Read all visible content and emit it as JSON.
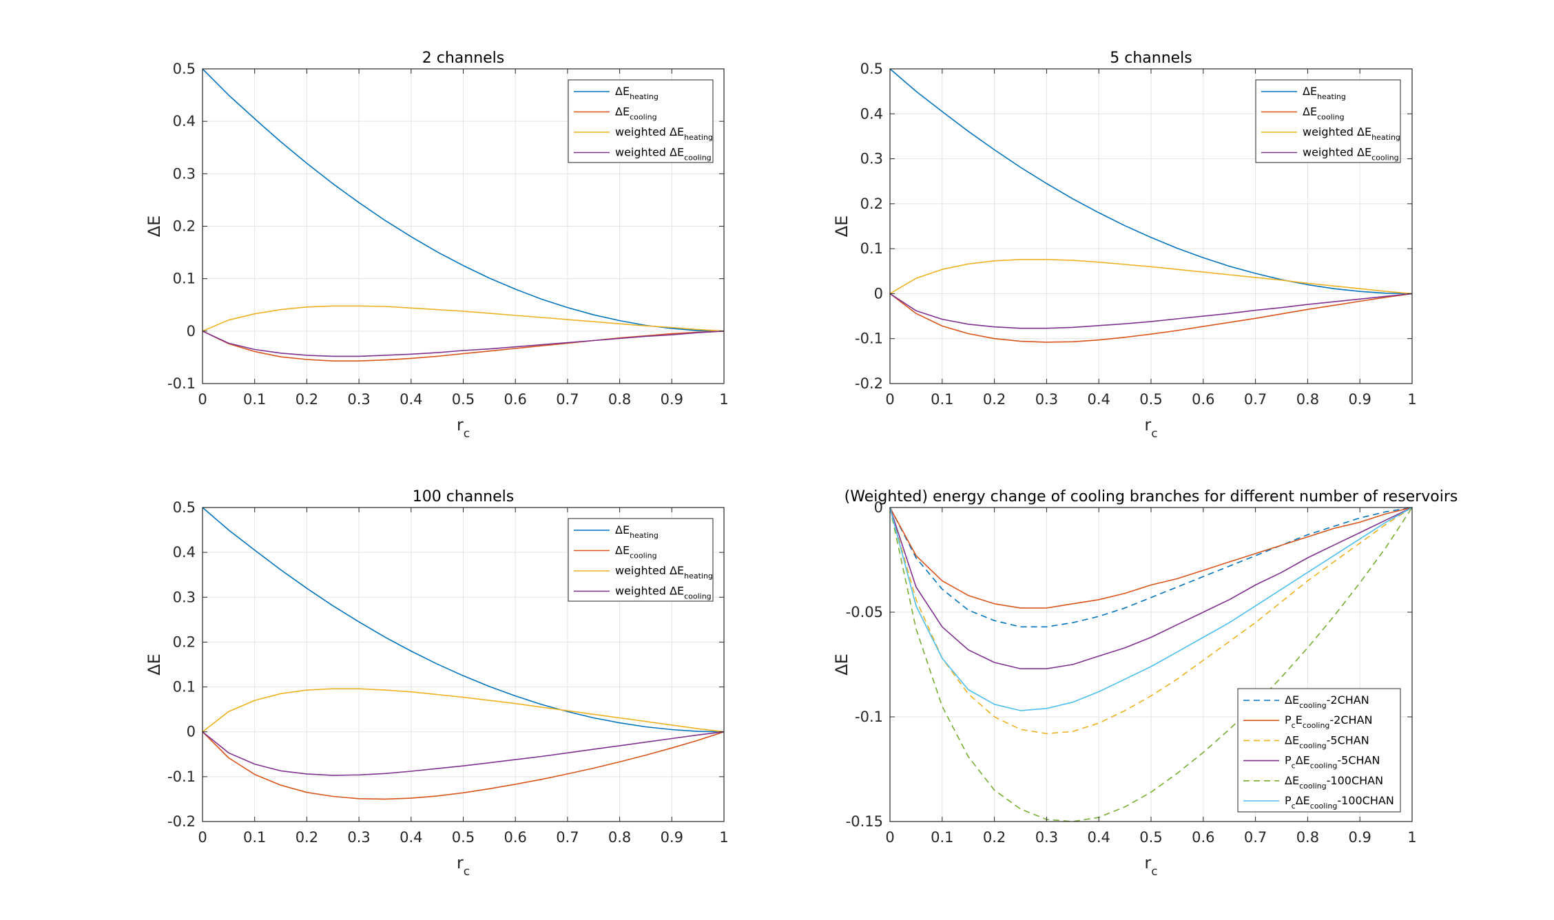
{
  "chart_data": [
    {
      "type": "line",
      "title": "2 channels",
      "xlabel": "r",
      "xlabel_sub": "c",
      "ylabel": "ΔE",
      "xlim": [
        0,
        1
      ],
      "ylim": [
        -0.1,
        0.5
      ],
      "xticks": [
        0,
        0.1,
        0.2,
        0.3,
        0.4,
        0.5,
        0.6,
        0.7,
        0.8,
        0.9,
        1
      ],
      "xtick_labels": [
        "0",
        "0.1",
        "0.2",
        "0.3",
        "0.4",
        "0.5",
        "0.6",
        "0.7",
        "0.8",
        "0.9",
        "1"
      ],
      "yticks": [
        -0.1,
        0,
        0.1,
        0.2,
        0.3,
        0.4,
        0.5
      ],
      "ytick_labels": [
        "-0.1",
        "0",
        "0.1",
        "0.2",
        "0.3",
        "0.4",
        "0.5"
      ],
      "grid": true,
      "legend_position": "top-right",
      "x": [
        0,
        0.05,
        0.1,
        0.15,
        0.2,
        0.25,
        0.3,
        0.35,
        0.4,
        0.45,
        0.5,
        0.55,
        0.6,
        0.65,
        0.7,
        0.75,
        0.8,
        0.85,
        0.9,
        0.95,
        1
      ],
      "series": [
        {
          "label_main": "ΔE",
          "label_sub": "heating",
          "label_suffix": "",
          "color": "#0072BD",
          "dash": "solid",
          "values": [
            0.5,
            0.45,
            0.405,
            0.361,
            0.32,
            0.281,
            0.245,
            0.211,
            0.18,
            0.151,
            0.125,
            0.101,
            0.08,
            0.061,
            0.045,
            0.031,
            0.02,
            0.011,
            0.005,
            0.001,
            0
          ]
        },
        {
          "label_main": "ΔE",
          "label_sub": "cooling",
          "label_suffix": "",
          "color": "#D95319",
          "dash": "solid",
          "values": [
            0,
            -0.024,
            -0.039,
            -0.049,
            -0.054,
            -0.057,
            -0.057,
            -0.055,
            -0.052,
            -0.048,
            -0.043,
            -0.038,
            -0.033,
            -0.028,
            -0.023,
            -0.018,
            -0.013,
            -0.009,
            -0.005,
            -0.002,
            0
          ]
        },
        {
          "label_main": "weighted ΔE",
          "label_sub": "heating",
          "label_suffix": "",
          "color": "#EDB120",
          "dash": "solid",
          "values": [
            0,
            0.021,
            0.033,
            0.041,
            0.046,
            0.048,
            0.048,
            0.047,
            0.044,
            0.041,
            0.038,
            0.034,
            0.03,
            0.026,
            0.022,
            0.018,
            0.014,
            0.01,
            0.007,
            0.003,
            0
          ]
        },
        {
          "label_main": "weighted ΔE",
          "label_sub": "cooling",
          "label_suffix": "",
          "color": "#7E2F8E",
          "dash": "solid",
          "values": [
            0,
            -0.023,
            -0.035,
            -0.042,
            -0.046,
            -0.048,
            -0.048,
            -0.046,
            -0.044,
            -0.041,
            -0.037,
            -0.034,
            -0.03,
            -0.026,
            -0.022,
            -0.018,
            -0.014,
            -0.01,
            -0.007,
            -0.003,
            0
          ]
        }
      ]
    },
    {
      "type": "line",
      "title": "5 channels",
      "xlabel": "r",
      "xlabel_sub": "c",
      "ylabel": "ΔE",
      "xlim": [
        0,
        1
      ],
      "ylim": [
        -0.2,
        0.5
      ],
      "xticks": [
        0,
        0.1,
        0.2,
        0.3,
        0.4,
        0.5,
        0.6,
        0.7,
        0.8,
        0.9,
        1
      ],
      "xtick_labels": [
        "0",
        "0.1",
        "0.2",
        "0.3",
        "0.4",
        "0.5",
        "0.6",
        "0.7",
        "0.8",
        "0.9",
        "1"
      ],
      "yticks": [
        -0.2,
        -0.1,
        0,
        0.1,
        0.2,
        0.3,
        0.4,
        0.5
      ],
      "ytick_labels": [
        "-0.2",
        "-0.1",
        "0",
        "0.1",
        "0.2",
        "0.3",
        "0.4",
        "0.5"
      ],
      "grid": true,
      "legend_position": "top-right",
      "x": [
        0,
        0.05,
        0.1,
        0.15,
        0.2,
        0.25,
        0.3,
        0.35,
        0.4,
        0.45,
        0.5,
        0.55,
        0.6,
        0.65,
        0.7,
        0.75,
        0.8,
        0.85,
        0.9,
        0.95,
        1
      ],
      "series": [
        {
          "label_main": "ΔE",
          "label_sub": "heating",
          "label_suffix": "",
          "color": "#0072BD",
          "dash": "solid",
          "values": [
            0.5,
            0.45,
            0.405,
            0.361,
            0.32,
            0.281,
            0.245,
            0.211,
            0.18,
            0.151,
            0.125,
            0.101,
            0.08,
            0.061,
            0.045,
            0.031,
            0.02,
            0.011,
            0.005,
            0.001,
            0
          ]
        },
        {
          "label_main": "ΔE",
          "label_sub": "cooling",
          "label_suffix": "",
          "color": "#D95319",
          "dash": "solid",
          "values": [
            0,
            -0.044,
            -0.072,
            -0.089,
            -0.1,
            -0.106,
            -0.108,
            -0.107,
            -0.103,
            -0.097,
            -0.09,
            -0.082,
            -0.073,
            -0.064,
            -0.055,
            -0.045,
            -0.035,
            -0.026,
            -0.017,
            -0.008,
            0
          ]
        },
        {
          "label_main": "weighted ΔE",
          "label_sub": "heating",
          "label_suffix": "",
          "color": "#EDB120",
          "dash": "solid",
          "values": [
            0,
            0.034,
            0.054,
            0.066,
            0.073,
            0.076,
            0.076,
            0.074,
            0.07,
            0.065,
            0.06,
            0.054,
            0.048,
            0.042,
            0.036,
            0.03,
            0.023,
            0.017,
            0.011,
            0.005,
            0
          ]
        },
        {
          "label_main": "weighted ΔE",
          "label_sub": "cooling",
          "label_suffix": "",
          "color": "#7E2F8E",
          "dash": "solid",
          "values": [
            0,
            -0.038,
            -0.057,
            -0.068,
            -0.074,
            -0.077,
            -0.077,
            -0.075,
            -0.071,
            -0.067,
            -0.062,
            -0.056,
            -0.05,
            -0.044,
            -0.037,
            -0.031,
            -0.024,
            -0.018,
            -0.012,
            -0.006,
            0
          ]
        }
      ]
    },
    {
      "type": "line",
      "title": "100 channels",
      "xlabel": "r",
      "xlabel_sub": "c",
      "ylabel": "ΔE",
      "xlim": [
        0,
        1
      ],
      "ylim": [
        -0.2,
        0.5
      ],
      "xticks": [
        0,
        0.1,
        0.2,
        0.3,
        0.4,
        0.5,
        0.6,
        0.7,
        0.8,
        0.9,
        1
      ],
      "xtick_labels": [
        "0",
        "0.1",
        "0.2",
        "0.3",
        "0.4",
        "0.5",
        "0.6",
        "0.7",
        "0.8",
        "0.9",
        "1"
      ],
      "yticks": [
        -0.2,
        -0.1,
        0,
        0.1,
        0.2,
        0.3,
        0.4,
        0.5
      ],
      "ytick_labels": [
        "-0.2",
        "-0.1",
        "0",
        "0.1",
        "0.2",
        "0.3",
        "0.4",
        "0.5"
      ],
      "grid": true,
      "legend_position": "top-right",
      "x": [
        0,
        0.05,
        0.1,
        0.15,
        0.2,
        0.25,
        0.3,
        0.35,
        0.4,
        0.45,
        0.5,
        0.55,
        0.6,
        0.65,
        0.7,
        0.75,
        0.8,
        0.85,
        0.9,
        0.95,
        1
      ],
      "series": [
        {
          "label_main": "ΔE",
          "label_sub": "heating",
          "label_suffix": "",
          "color": "#0072BD",
          "dash": "solid",
          "values": [
            0.5,
            0.45,
            0.405,
            0.361,
            0.32,
            0.281,
            0.245,
            0.211,
            0.18,
            0.151,
            0.125,
            0.101,
            0.08,
            0.061,
            0.045,
            0.031,
            0.02,
            0.011,
            0.005,
            0.001,
            0
          ]
        },
        {
          "label_main": "ΔE",
          "label_sub": "cooling",
          "label_suffix": "",
          "color": "#D95319",
          "dash": "solid",
          "values": [
            0,
            -0.058,
            -0.095,
            -0.119,
            -0.135,
            -0.144,
            -0.149,
            -0.15,
            -0.148,
            -0.143,
            -0.136,
            -0.127,
            -0.117,
            -0.106,
            -0.094,
            -0.081,
            -0.067,
            -0.052,
            -0.036,
            -0.019,
            0
          ]
        },
        {
          "label_main": "weighted ΔE",
          "label_sub": "heating",
          "label_suffix": "",
          "color": "#EDB120",
          "dash": "solid",
          "values": [
            0,
            0.045,
            0.07,
            0.085,
            0.093,
            0.096,
            0.096,
            0.093,
            0.089,
            0.083,
            0.077,
            0.07,
            0.063,
            0.055,
            0.047,
            0.039,
            0.031,
            0.023,
            0.015,
            0.007,
            0
          ]
        },
        {
          "label_main": "weighted ΔE",
          "label_sub": "cooling",
          "label_suffix": "",
          "color": "#7E2F8E",
          "dash": "solid",
          "values": [
            0,
            -0.047,
            -0.072,
            -0.087,
            -0.094,
            -0.097,
            -0.096,
            -0.093,
            -0.088,
            -0.082,
            -0.076,
            -0.069,
            -0.062,
            -0.055,
            -0.047,
            -0.039,
            -0.031,
            -0.023,
            -0.015,
            -0.007,
            0
          ]
        }
      ]
    },
    {
      "type": "line",
      "title": "(Weighted) energy change of cooling branches for different number of reservoirs",
      "xlabel": "r",
      "xlabel_sub": "c",
      "ylabel": "ΔE",
      "xlim": [
        0,
        1
      ],
      "ylim": [
        -0.15,
        0
      ],
      "xticks": [
        0,
        0.1,
        0.2,
        0.3,
        0.4,
        0.5,
        0.6,
        0.7,
        0.8,
        0.9,
        1
      ],
      "xtick_labels": [
        "0",
        "0.1",
        "0.2",
        "0.3",
        "0.4",
        "0.5",
        "0.6",
        "0.7",
        "0.8",
        "0.9",
        "1"
      ],
      "yticks": [
        -0.15,
        -0.1,
        -0.05,
        0
      ],
      "ytick_labels": [
        "-0.15",
        "-0.1",
        "-0.05",
        "0"
      ],
      "grid": true,
      "legend_position": "bottom-right",
      "x": [
        0,
        0.05,
        0.1,
        0.15,
        0.2,
        0.25,
        0.3,
        0.35,
        0.4,
        0.45,
        0.5,
        0.55,
        0.6,
        0.65,
        0.7,
        0.75,
        0.8,
        0.85,
        0.9,
        0.95,
        1
      ],
      "series": [
        {
          "label_main": "ΔE",
          "label_sub": "cooling",
          "label_suffix": "-2CHAN",
          "color": "#0072BD",
          "dash": "dashed",
          "values": [
            0,
            -0.024,
            -0.039,
            -0.049,
            -0.054,
            -0.057,
            -0.057,
            -0.055,
            -0.052,
            -0.048,
            -0.043,
            -0.038,
            -0.033,
            -0.028,
            -0.023,
            -0.018,
            -0.013,
            -0.009,
            -0.005,
            -0.002,
            0
          ]
        },
        {
          "label_main": "P",
          "label_pre_sub": "c",
          "label_mid": "E",
          "label_sub": "cooling",
          "label_suffix": "-2CHAN",
          "color": "#D95319",
          "dash": "solid",
          "values": [
            0,
            -0.023,
            -0.035,
            -0.042,
            -0.046,
            -0.048,
            -0.048,
            -0.046,
            -0.044,
            -0.041,
            -0.037,
            -0.034,
            -0.03,
            -0.026,
            -0.022,
            -0.018,
            -0.014,
            -0.01,
            -0.007,
            -0.003,
            0
          ]
        },
        {
          "label_main": "ΔE",
          "label_sub": "cooling",
          "label_suffix": "-5CHAN",
          "color": "#EDB120",
          "dash": "dashed",
          "values": [
            0,
            -0.044,
            -0.072,
            -0.089,
            -0.1,
            -0.106,
            -0.108,
            -0.107,
            -0.103,
            -0.097,
            -0.09,
            -0.082,
            -0.073,
            -0.064,
            -0.055,
            -0.045,
            -0.035,
            -0.026,
            -0.017,
            -0.008,
            0
          ]
        },
        {
          "label_main": "P",
          "label_pre_sub": "c",
          "label_mid": "ΔE",
          "label_sub": "cooling",
          "label_suffix": "-5CHAN",
          "color": "#7E2F8E",
          "dash": "solid",
          "values": [
            0,
            -0.038,
            -0.057,
            -0.068,
            -0.074,
            -0.077,
            -0.077,
            -0.075,
            -0.071,
            -0.067,
            -0.062,
            -0.056,
            -0.05,
            -0.044,
            -0.037,
            -0.031,
            -0.024,
            -0.018,
            -0.012,
            -0.006,
            0
          ]
        },
        {
          "label_main": "ΔE",
          "label_sub": "cooling",
          "label_suffix": "-100CHAN",
          "color": "#77AC30",
          "dash": "dashed",
          "values": [
            0,
            -0.058,
            -0.095,
            -0.119,
            -0.135,
            -0.144,
            -0.149,
            -0.15,
            -0.148,
            -0.143,
            -0.136,
            -0.127,
            -0.117,
            -0.106,
            -0.094,
            -0.081,
            -0.067,
            -0.052,
            -0.036,
            -0.019,
            0
          ]
        },
        {
          "label_main": "P",
          "label_pre_sub": "c",
          "label_mid": "ΔE",
          "label_sub": "cooling",
          "label_suffix": "-100CHAN",
          "color": "#4DBEEE",
          "dash": "solid",
          "values": [
            0,
            -0.047,
            -0.072,
            -0.087,
            -0.094,
            -0.097,
            -0.096,
            -0.093,
            -0.088,
            -0.082,
            -0.076,
            -0.069,
            -0.062,
            -0.055,
            -0.047,
            -0.039,
            -0.031,
            -0.023,
            -0.015,
            -0.007,
            0
          ]
        }
      ]
    }
  ]
}
